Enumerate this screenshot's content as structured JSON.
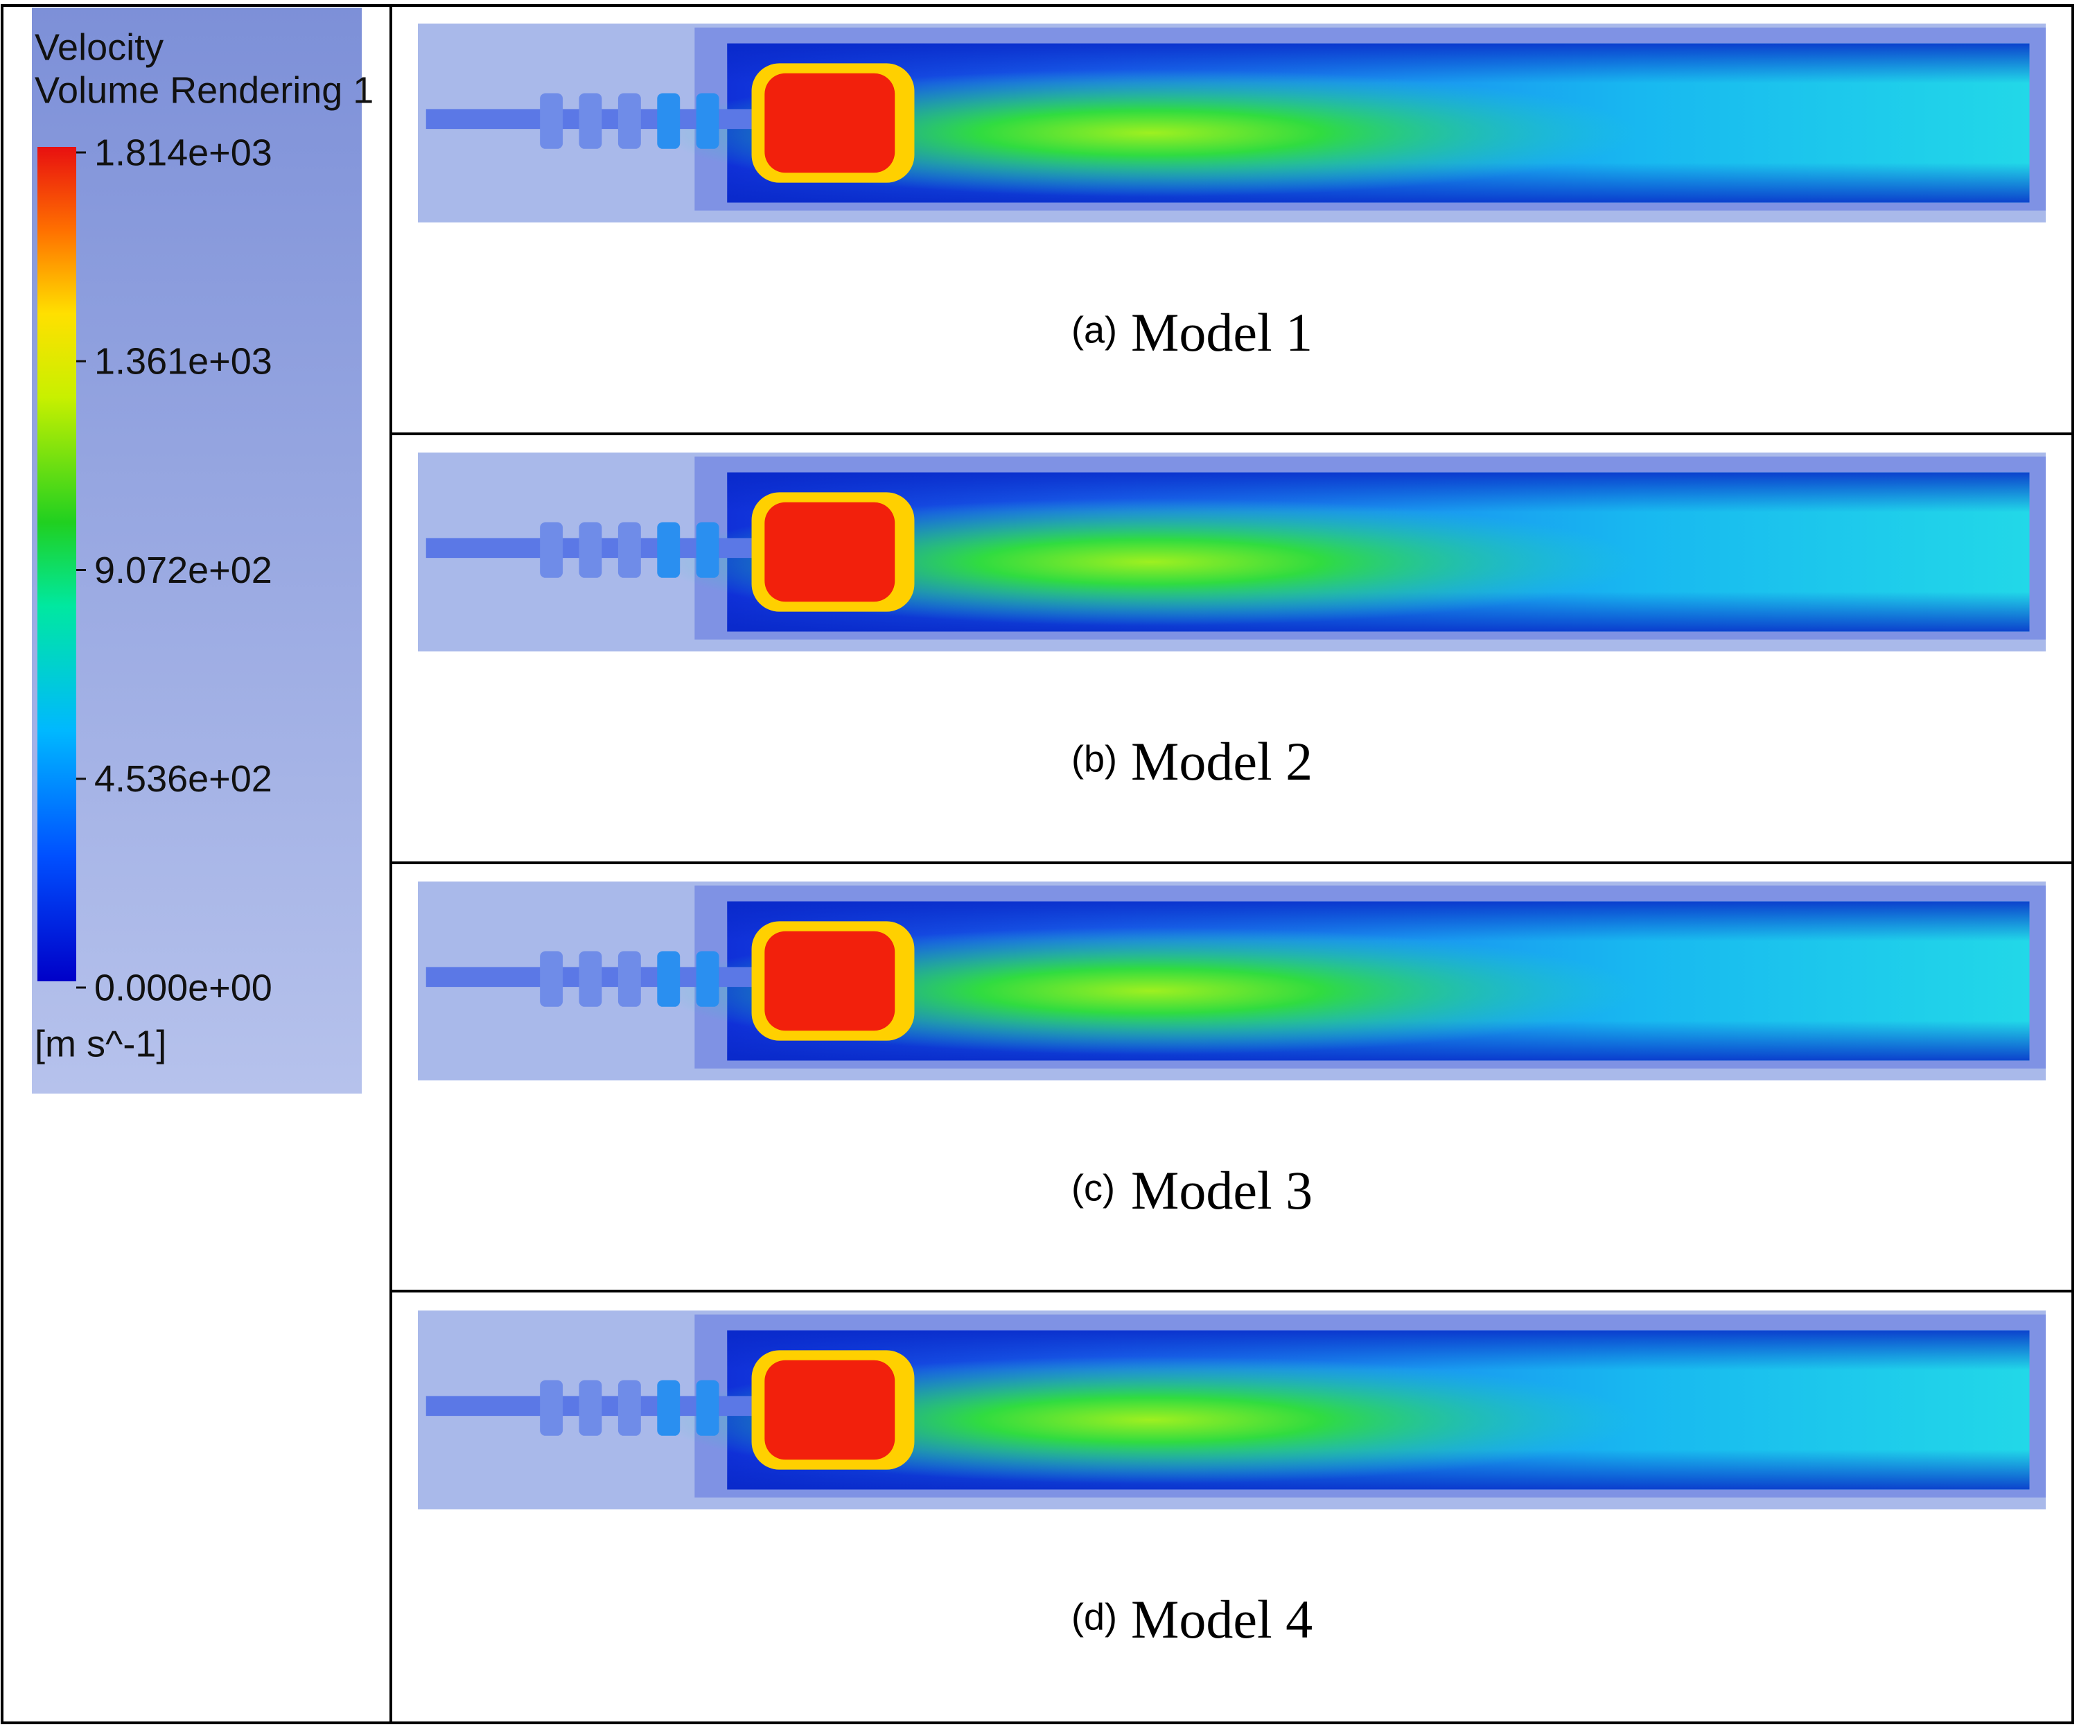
{
  "legend": {
    "title": "Velocity",
    "subtitle": "Volume Rendering 1",
    "ticks": [
      "1.814e+03",
      "1.361e+03",
      "9.072e+02",
      "4.536e+02",
      "0.000e+00"
    ],
    "unit": "[m s^-1]"
  },
  "panels": [
    {
      "tag": "(a)",
      "name": "Model 1"
    },
    {
      "tag": "(b)",
      "name": "Model 2"
    },
    {
      "tag": "(c)",
      "name": "Model 3"
    },
    {
      "tag": "(d)",
      "name": "Model 4"
    }
  ]
}
